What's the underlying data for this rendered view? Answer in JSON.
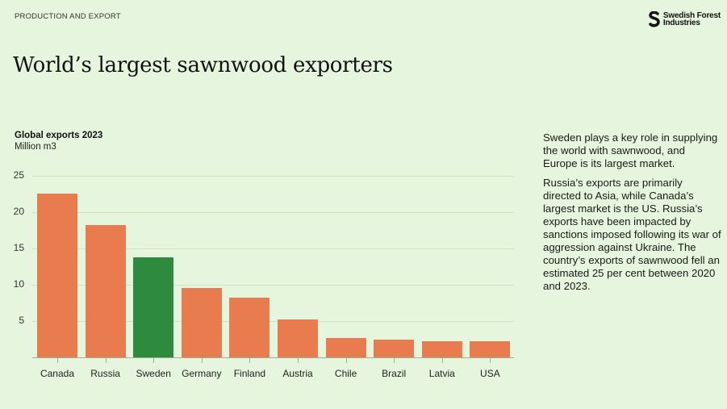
{
  "header": {
    "section_label": "PRODUCTION AND EXPORT",
    "logo_text_line1": "Swedish Forest",
    "logo_text_line2": "Industries"
  },
  "title": "World’s largest sawnwood exporters",
  "chart": {
    "title": "Global exports 2023",
    "unit": "Million m3"
  },
  "side_text": {
    "paragraph1": "Sweden plays a key role in supplying the world with sawnwood, and Europe is its largest market.",
    "paragraph2": "Russia’s exports are primarily directed to Asia, while Canada’s largest market is the US. Russia’s exports have been impacted by sanctions imposed following its war of aggression against Ukraine. The country’s exports of sawnwood fell an estimated 25 per cent between 2020 and 2023."
  },
  "colors": {
    "background": "#e6f5dd",
    "bar_default": "#e87c4e",
    "bar_highlight": "#2e8b3d"
  },
  "chart_data": {
    "type": "bar",
    "title": "Global exports 2023",
    "subtitle": "Million m3",
    "xlabel": "",
    "ylabel": "Million m3",
    "categories": [
      "Canada",
      "Russia",
      "Sweden",
      "Germany",
      "Finland",
      "Austria",
      "Chile",
      "Brazil",
      "Latvia",
      "USA"
    ],
    "values": [
      22.6,
      18.2,
      13.8,
      9.6,
      8.2,
      5.2,
      2.7,
      2.4,
      2.2,
      2.2
    ],
    "highlight": "Sweden",
    "yticks": [
      5,
      10,
      15,
      20,
      25
    ],
    "ylim": [
      0,
      25
    ],
    "grid": true,
    "legend": null
  }
}
